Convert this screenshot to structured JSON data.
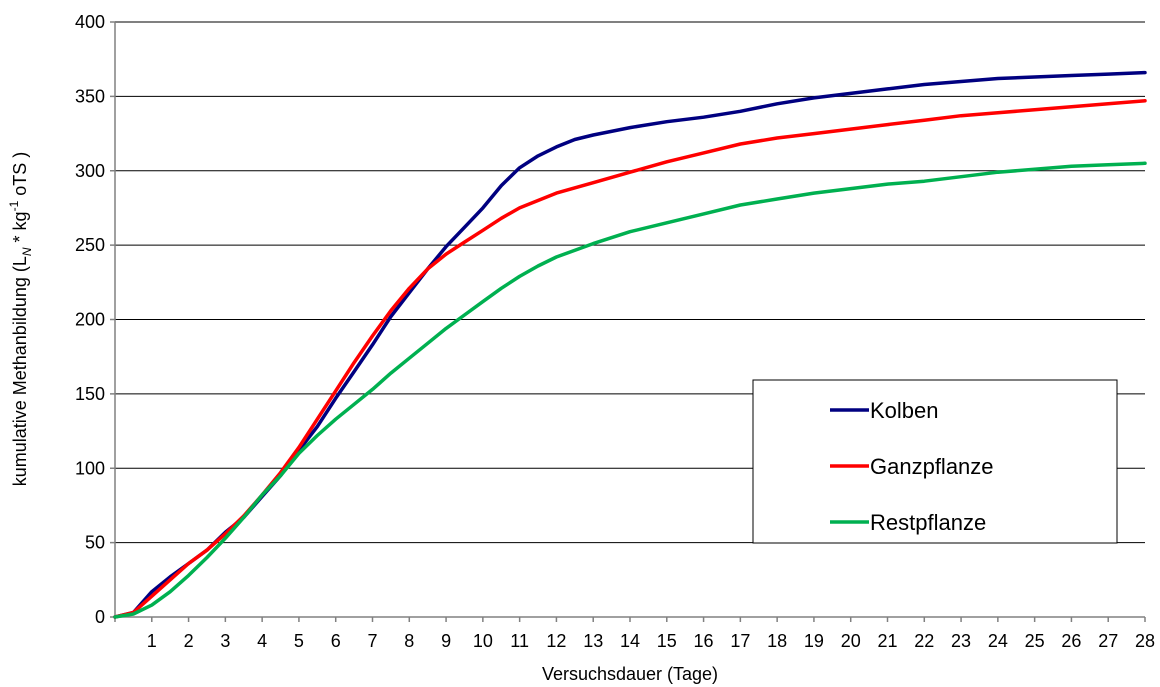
{
  "chart_data": {
    "type": "line",
    "title": "",
    "xlabel": "Versuchsdauer (Tage)",
    "ylabel": {
      "main": "kumulative Methanbildung (L",
      "sub": "N",
      "mid": " * kg",
      "sup": "-1",
      "end": " oTS )"
    },
    "xlim": [
      0,
      28
    ],
    "ylim": [
      0,
      400
    ],
    "x_ticks": [
      1,
      2,
      3,
      4,
      5,
      6,
      7,
      8,
      9,
      10,
      11,
      12,
      13,
      14,
      15,
      16,
      17,
      18,
      19,
      20,
      21,
      22,
      23,
      24,
      25,
      26,
      27,
      28
    ],
    "y_ticks": [
      0,
      50,
      100,
      150,
      200,
      250,
      300,
      350,
      400
    ],
    "grid": "horizontal",
    "legend_position": "lower-right",
    "series": [
      {
        "name": "Kolben",
        "color": "#000080",
        "points": [
          [
            0,
            0
          ],
          [
            0.5,
            3
          ],
          [
            1,
            17
          ],
          [
            1.5,
            27
          ],
          [
            2,
            36
          ],
          [
            2.5,
            45
          ],
          [
            3,
            57
          ],
          [
            3.5,
            67
          ],
          [
            4,
            81
          ],
          [
            4.5,
            95
          ],
          [
            5,
            112
          ],
          [
            5.5,
            128
          ],
          [
            6,
            147
          ],
          [
            6.5,
            165
          ],
          [
            7,
            183
          ],
          [
            7.5,
            202
          ],
          [
            8,
            218
          ],
          [
            8.5,
            234
          ],
          [
            9,
            249
          ],
          [
            9.5,
            262
          ],
          [
            10,
            275
          ],
          [
            10.5,
            290
          ],
          [
            11,
            302
          ],
          [
            11.5,
            310
          ],
          [
            12,
            316
          ],
          [
            12.5,
            321
          ],
          [
            13,
            324
          ],
          [
            14,
            329
          ],
          [
            15,
            333
          ],
          [
            16,
            336
          ],
          [
            17,
            340
          ],
          [
            18,
            345
          ],
          [
            19,
            349
          ],
          [
            20,
            352
          ],
          [
            21,
            355
          ],
          [
            22,
            358
          ],
          [
            23,
            360
          ],
          [
            24,
            362
          ],
          [
            25,
            363
          ],
          [
            26,
            364
          ],
          [
            27,
            365
          ],
          [
            28,
            366
          ]
        ]
      },
      {
        "name": "Ganzpflanze",
        "color": "#ff0000",
        "points": [
          [
            0,
            0
          ],
          [
            0.5,
            3
          ],
          [
            1,
            14
          ],
          [
            1.5,
            25
          ],
          [
            2,
            36
          ],
          [
            2.5,
            45
          ],
          [
            3,
            56
          ],
          [
            3.5,
            68
          ],
          [
            4,
            82
          ],
          [
            4.5,
            97
          ],
          [
            5,
            114
          ],
          [
            5.5,
            133
          ],
          [
            6,
            152
          ],
          [
            6.5,
            171
          ],
          [
            7,
            189
          ],
          [
            7.5,
            206
          ],
          [
            8,
            221
          ],
          [
            8.5,
            234
          ],
          [
            9,
            244
          ],
          [
            9.5,
            252
          ],
          [
            10,
            260
          ],
          [
            10.5,
            268
          ],
          [
            11,
            275
          ],
          [
            11.5,
            280
          ],
          [
            12,
            285
          ],
          [
            13,
            292
          ],
          [
            14,
            299
          ],
          [
            15,
            306
          ],
          [
            16,
            312
          ],
          [
            17,
            318
          ],
          [
            18,
            322
          ],
          [
            19,
            325
          ],
          [
            20,
            328
          ],
          [
            21,
            331
          ],
          [
            22,
            334
          ],
          [
            23,
            337
          ],
          [
            24,
            339
          ],
          [
            25,
            341
          ],
          [
            26,
            343
          ],
          [
            27,
            345
          ],
          [
            28,
            347
          ]
        ]
      },
      {
        "name": "Restpflanze",
        "color": "#00b050",
        "points": [
          [
            0,
            0
          ],
          [
            0.5,
            2
          ],
          [
            1,
            8
          ],
          [
            1.5,
            17
          ],
          [
            2,
            28
          ],
          [
            2.5,
            40
          ],
          [
            3,
            53
          ],
          [
            3.5,
            67
          ],
          [
            4,
            82
          ],
          [
            4.5,
            95
          ],
          [
            5,
            110
          ],
          [
            5.5,
            122
          ],
          [
            6,
            133
          ],
          [
            6.5,
            143
          ],
          [
            7,
            153
          ],
          [
            7.5,
            164
          ],
          [
            8,
            174
          ],
          [
            8.5,
            184
          ],
          [
            9,
            194
          ],
          [
            9.5,
            203
          ],
          [
            10,
            212
          ],
          [
            10.5,
            221
          ],
          [
            11,
            229
          ],
          [
            11.5,
            236
          ],
          [
            12,
            242
          ],
          [
            13,
            251
          ],
          [
            14,
            259
          ],
          [
            15,
            265
          ],
          [
            16,
            271
          ],
          [
            17,
            277
          ],
          [
            18,
            281
          ],
          [
            19,
            285
          ],
          [
            20,
            288
          ],
          [
            21,
            291
          ],
          [
            22,
            293
          ],
          [
            23,
            296
          ],
          [
            24,
            299
          ],
          [
            25,
            301
          ],
          [
            26,
            303
          ],
          [
            27,
            304
          ],
          [
            28,
            305
          ]
        ]
      }
    ]
  }
}
